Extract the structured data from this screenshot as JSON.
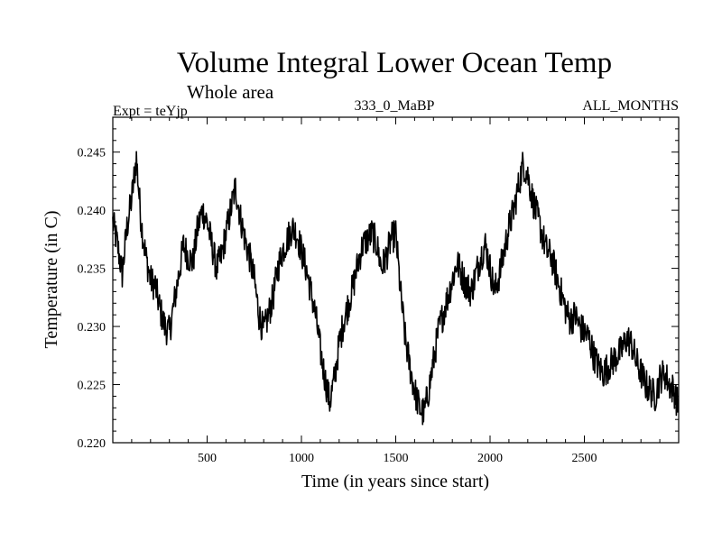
{
  "chart_data": {
    "type": "line",
    "title": "Volume Integral Lower Ocean Temp",
    "subtitle": "Whole area",
    "left_label": "Expt = teYjp",
    "center_label": "333_0_MaBP",
    "right_label": "ALL_MONTHS",
    "xlabel": "Time (in years since start)",
    "ylabel": "Temperature (in C)",
    "xlim": [
      0,
      3000
    ],
    "ylim": [
      0.22,
      0.248
    ],
    "xticks": [
      500,
      1000,
      1500,
      2000,
      2500
    ],
    "xtick_labels": [
      "500",
      "1000",
      "1500",
      "2000",
      "2500"
    ],
    "yticks": [
      0.22,
      0.225,
      0.23,
      0.235,
      0.24,
      0.245
    ],
    "ytick_labels": [
      "0.220",
      "0.225",
      "0.230",
      "0.235",
      "0.240",
      "0.245"
    ],
    "grid": false,
    "series": [
      {
        "name": "Volume integral lower ocean temperature",
        "x": [
          0,
          25,
          50,
          75,
          100,
          125,
          150,
          175,
          200,
          225,
          250,
          275,
          300,
          325,
          350,
          375,
          400,
          425,
          450,
          475,
          500,
          525,
          550,
          575,
          600,
          625,
          650,
          675,
          700,
          725,
          750,
          775,
          800,
          825,
          850,
          875,
          900,
          925,
          950,
          975,
          1000,
          1025,
          1050,
          1075,
          1100,
          1125,
          1150,
          1175,
          1200,
          1225,
          1250,
          1275,
          1300,
          1325,
          1350,
          1375,
          1400,
          1425,
          1450,
          1475,
          1500,
          1525,
          1550,
          1575,
          1600,
          1625,
          1650,
          1675,
          1700,
          1725,
          1750,
          1775,
          1800,
          1825,
          1850,
          1875,
          1900,
          1925,
          1950,
          1975,
          2000,
          2025,
          2050,
          2075,
          2100,
          2125,
          2150,
          2175,
          2200,
          2225,
          2250,
          2275,
          2300,
          2325,
          2350,
          2375,
          2400,
          2425,
          2450,
          2475,
          2500,
          2525,
          2550,
          2575,
          2600,
          2625,
          2650,
          2675,
          2700,
          2725,
          2750,
          2775,
          2800,
          2825,
          2850,
          2875,
          2900,
          2925,
          2950,
          2975,
          3000
        ],
        "y": [
          0.239,
          0.237,
          0.2345,
          0.2385,
          0.241,
          0.2445,
          0.239,
          0.236,
          0.234,
          0.2335,
          0.2315,
          0.23,
          0.2295,
          0.232,
          0.2345,
          0.237,
          0.236,
          0.2355,
          0.2385,
          0.24,
          0.239,
          0.237,
          0.235,
          0.236,
          0.238,
          0.24,
          0.242,
          0.2395,
          0.2375,
          0.236,
          0.234,
          0.231,
          0.2295,
          0.231,
          0.2325,
          0.235,
          0.2365,
          0.2375,
          0.2385,
          0.238,
          0.2365,
          0.235,
          0.233,
          0.231,
          0.228,
          0.2255,
          0.2235,
          0.2255,
          0.2285,
          0.2305,
          0.232,
          0.2335,
          0.2355,
          0.237,
          0.2375,
          0.238,
          0.237,
          0.235,
          0.236,
          0.2375,
          0.238,
          0.233,
          0.229,
          0.2265,
          0.2245,
          0.223,
          0.2225,
          0.2245,
          0.227,
          0.2295,
          0.231,
          0.2325,
          0.234,
          0.2355,
          0.2345,
          0.2335,
          0.233,
          0.2345,
          0.236,
          0.237,
          0.235,
          0.233,
          0.2345,
          0.2365,
          0.2385,
          0.24,
          0.242,
          0.244,
          0.243,
          0.241,
          0.2395,
          0.238,
          0.2365,
          0.236,
          0.2345,
          0.233,
          0.2315,
          0.2305,
          0.231,
          0.23,
          0.2295,
          0.229,
          0.2275,
          0.2265,
          0.226,
          0.2265,
          0.227,
          0.2275,
          0.228,
          0.229,
          0.2285,
          0.227,
          0.226,
          0.225,
          0.2245,
          0.224,
          0.2255,
          0.226,
          0.225,
          0.2245,
          0.223
        ]
      }
    ]
  }
}
